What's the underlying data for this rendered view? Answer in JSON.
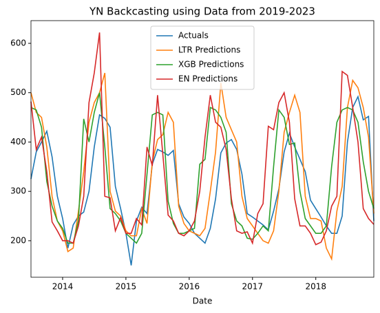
{
  "chart_data": {
    "type": "line",
    "title": "YN Backcasting using Data from 2019-2023",
    "x_label": "Date",
    "x": [
      "2013-07",
      "2013-08",
      "2013-09",
      "2013-10",
      "2013-11",
      "2013-12",
      "2014-01",
      "2014-02",
      "2014-03",
      "2014-04",
      "2014-05",
      "2014-06",
      "2014-07",
      "2014-08",
      "2014-09",
      "2014-10",
      "2014-11",
      "2014-12",
      "2015-01",
      "2015-02",
      "2015-03",
      "2015-04",
      "2015-05",
      "2015-06",
      "2015-07",
      "2015-08",
      "2015-09",
      "2015-10",
      "2015-11",
      "2015-12",
      "2016-01",
      "2016-02",
      "2016-03",
      "2016-04",
      "2016-05",
      "2016-06",
      "2016-07",
      "2016-08",
      "2016-09",
      "2016-10",
      "2016-11",
      "2016-12",
      "2017-01",
      "2017-02",
      "2017-03",
      "2017-04",
      "2017-05",
      "2017-06",
      "2017-07",
      "2017-08",
      "2017-09",
      "2017-10",
      "2017-11",
      "2017-12",
      "2018-01",
      "2018-02",
      "2018-03",
      "2018-04",
      "2018-05",
      "2018-06",
      "2018-07",
      "2018-08",
      "2018-09",
      "2018-10",
      "2018-11",
      "2018-12"
    ],
    "series": [
      {
        "name": "Actuals",
        "color": "#1f77b4",
        "values": [
          325,
          380,
          400,
          422,
          370,
          290,
          245,
          185,
          232,
          250,
          258,
          300,
          390,
          455,
          448,
          430,
          310,
          265,
          215,
          150,
          240,
          268,
          255,
          355,
          385,
          380,
          373,
          383,
          275,
          248,
          235,
          215,
          205,
          195,
          225,
          285,
          378,
          398,
          405,
          385,
          335,
          255,
          248,
          240,
          232,
          222,
          260,
          305,
          380,
          418,
          390,
          365,
          340,
          282,
          265,
          248,
          230,
          215,
          215,
          250,
          400,
          470,
          492,
          445,
          452,
          240
        ]
      },
      {
        "name": "LTR Predictions",
        "color": "#ff7f0e",
        "values": [
          500,
          460,
          450,
          390,
          290,
          240,
          220,
          178,
          185,
          260,
          340,
          440,
          480,
          500,
          540,
          300,
          260,
          250,
          220,
          210,
          210,
          265,
          235,
          360,
          405,
          415,
          460,
          440,
          270,
          235,
          220,
          215,
          210,
          225,
          300,
          380,
          520,
          450,
          425,
          400,
          290,
          245,
          230,
          215,
          200,
          195,
          220,
          300,
          420,
          460,
          495,
          460,
          290,
          245,
          245,
          240,
          185,
          163,
          260,
          310,
          470,
          525,
          510,
          470,
          410,
          255
        ]
      },
      {
        "name": "XGB Predictions",
        "color": "#2ca02c",
        "values": [
          470,
          465,
          430,
          320,
          270,
          240,
          225,
          195,
          195,
          240,
          447,
          400,
          460,
          500,
          390,
          265,
          255,
          240,
          215,
          205,
          195,
          215,
          335,
          455,
          460,
          455,
          280,
          235,
          215,
          215,
          220,
          225,
          355,
          365,
          470,
          465,
          450,
          420,
          275,
          240,
          230,
          205,
          203,
          215,
          230,
          220,
          350,
          465,
          450,
          395,
          398,
          300,
          245,
          230,
          215,
          215,
          230,
          350,
          440,
          465,
          470,
          465,
          440,
          360,
          300,
          265
        ]
      },
      {
        "name": "EN Predictions",
        "color": "#d62728",
        "values": [
          482,
          385,
          410,
          340,
          238,
          220,
          200,
          200,
          195,
          230,
          290,
          480,
          540,
          622,
          290,
          287,
          220,
          247,
          215,
          215,
          245,
          232,
          390,
          352,
          495,
          375,
          252,
          240,
          215,
          210,
          220,
          240,
          300,
          410,
          495,
          440,
          430,
          385,
          285,
          220,
          215,
          218,
          195,
          255,
          275,
          432,
          425,
          480,
          500,
          440,
          285,
          230,
          230,
          215,
          192,
          197,
          220,
          270,
          290,
          543,
          535,
          470,
          400,
          265,
          245,
          233
        ]
      }
    ],
    "xlim": [
      "2013-07",
      "2018-12"
    ],
    "xticks": [
      {
        "value": "2014-01",
        "label": "2014"
      },
      {
        "value": "2015-01",
        "label": "2015"
      },
      {
        "value": "2016-01",
        "label": "2016"
      },
      {
        "value": "2017-01",
        "label": "2017"
      },
      {
        "value": "2018-01",
        "label": "2018"
      }
    ],
    "ylim": [
      126,
      646
    ],
    "yticks": [
      200,
      300,
      400,
      500,
      600
    ],
    "grid": false,
    "legend": "upper center"
  }
}
